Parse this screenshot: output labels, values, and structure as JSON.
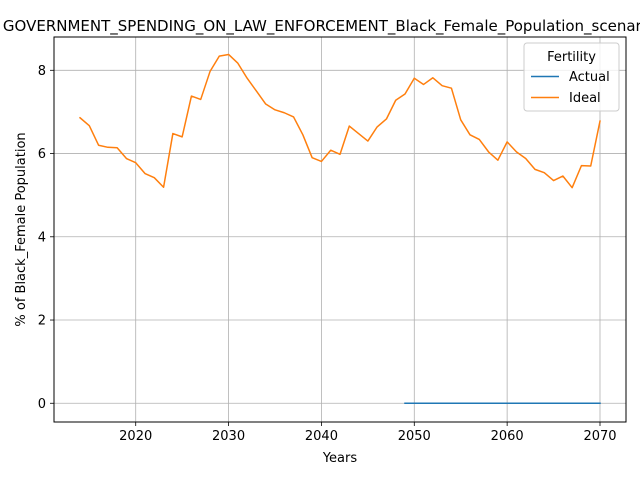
{
  "chart_data": {
    "type": "line",
    "title": "GOVERNMENT_SPENDING_ON_LAW_ENFORCEMENT_Black_Female_Population_scenario",
    "xlabel": "Years",
    "ylabel": "% of Black_Female Population",
    "xlim": [
      2011.2,
      2072.8
    ],
    "ylim": [
      -0.45,
      8.8
    ],
    "xticks": [
      2020,
      2030,
      2040,
      2050,
      2060,
      2070
    ],
    "yticks": [
      0,
      2,
      4,
      6,
      8
    ],
    "grid": true,
    "legend": {
      "title": "Fertility",
      "placement": "top-right"
    },
    "series": [
      {
        "name": "Actual",
        "color": "#1f77b4",
        "x": [
          2049,
          2050,
          2051,
          2052,
          2053,
          2054,
          2055,
          2056,
          2057,
          2058,
          2059,
          2060,
          2061,
          2062,
          2063,
          2064,
          2065,
          2066,
          2067,
          2068,
          2069,
          2070
        ],
        "y": [
          0,
          0,
          0,
          0,
          0,
          0,
          0,
          0,
          0,
          0,
          0,
          0,
          0,
          0,
          0,
          0,
          0,
          0,
          0,
          0,
          0,
          0
        ]
      },
      {
        "name": "Ideal",
        "color": "#ff7f0e",
        "x": [
          2014,
          2015,
          2016,
          2017,
          2018,
          2019,
          2020,
          2021,
          2022,
          2023,
          2024,
          2025,
          2026,
          2027,
          2028,
          2029,
          2030,
          2031,
          2032,
          2033,
          2034,
          2035,
          2036,
          2037,
          2038,
          2039,
          2040,
          2041,
          2042,
          2043,
          2044,
          2045,
          2046,
          2047,
          2048,
          2049,
          2050,
          2051,
          2052,
          2053,
          2054,
          2055,
          2056,
          2057,
          2058,
          2059,
          2060,
          2061,
          2062,
          2063,
          2064,
          2065,
          2066,
          2067,
          2068,
          2069,
          2070
        ],
        "y": [
          6.86,
          6.67,
          6.2,
          6.15,
          6.14,
          5.88,
          5.78,
          5.52,
          5.42,
          5.19,
          6.48,
          6.4,
          7.38,
          7.3,
          7.97,
          8.34,
          8.38,
          8.17,
          7.81,
          7.5,
          7.19,
          7.05,
          6.98,
          6.88,
          6.45,
          5.9,
          5.81,
          6.08,
          5.98,
          6.66,
          6.48,
          6.3,
          6.64,
          6.83,
          7.28,
          7.43,
          7.81,
          7.66,
          7.82,
          7.63,
          7.57,
          6.81,
          6.45,
          6.34,
          6.04,
          5.84,
          6.28,
          6.04,
          5.88,
          5.62,
          5.54,
          5.35,
          5.46,
          5.18,
          5.71,
          5.7,
          6.78
        ]
      }
    ]
  }
}
